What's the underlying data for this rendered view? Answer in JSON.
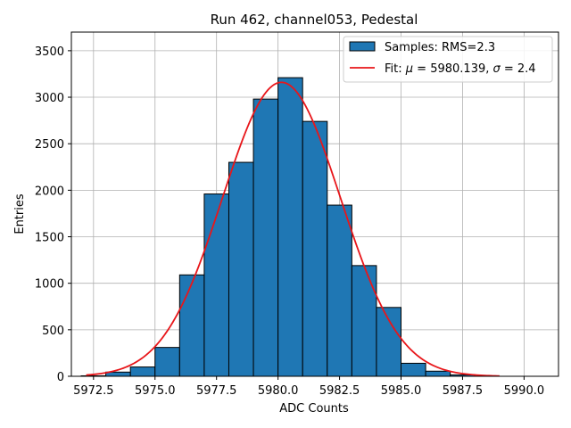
{
  "chart_data": {
    "type": "bar",
    "title": "Run 462, channel053, Pedestal",
    "xlabel": "ADC Counts",
    "ylabel": "Entries",
    "xlim": [
      5971.6,
      5991.4
    ],
    "ylim": [
      0,
      3700
    ],
    "xticks": [
      5972.5,
      5975.0,
      5977.5,
      5980.0,
      5982.5,
      5985.0,
      5987.5,
      5990.0
    ],
    "xtick_labels": [
      "5972.5",
      "5975.0",
      "5977.5",
      "5980.0",
      "5982.5",
      "5985.0",
      "5987.5",
      "5990.0"
    ],
    "yticks": [
      0,
      500,
      1000,
      1500,
      2000,
      2500,
      3000,
      3500
    ],
    "ytick_labels": [
      "0",
      "500",
      "1000",
      "1500",
      "2000",
      "2500",
      "3000",
      "3500"
    ],
    "grid": true,
    "legend_position": "top-right",
    "bar_color": "#1f77b4",
    "fit_color": "#e8161a",
    "histogram": {
      "name": "Samples: RMS=2.3",
      "bins": [
        {
          "x0": 5972.0,
          "x1": 5973.0,
          "value": 5
        },
        {
          "x0": 5973.0,
          "x1": 5974.0,
          "value": 45
        },
        {
          "x0": 5974.0,
          "x1": 5975.0,
          "value": 100
        },
        {
          "x0": 5975.0,
          "x1": 5976.0,
          "value": 310
        },
        {
          "x0": 5976.0,
          "x1": 5977.0,
          "value": 1090
        },
        {
          "x0": 5977.0,
          "x1": 5978.0,
          "value": 1960
        },
        {
          "x0": 5978.0,
          "x1": 5979.0,
          "value": 2300
        },
        {
          "x0": 5979.0,
          "x1": 5980.0,
          "value": 2980
        },
        {
          "x0": 5980.0,
          "x1": 5981.0,
          "value": 3210
        },
        {
          "x0": 5981.0,
          "x1": 5982.0,
          "value": 2740
        },
        {
          "x0": 5982.0,
          "x1": 5983.0,
          "value": 1840
        },
        {
          "x0": 5983.0,
          "x1": 5984.0,
          "value": 1190
        },
        {
          "x0": 5984.0,
          "x1": 5985.0,
          "value": 740
        },
        {
          "x0": 5985.0,
          "x1": 5986.0,
          "value": 140
        },
        {
          "x0": 5986.0,
          "x1": 5987.0,
          "value": 55
        },
        {
          "x0": 5987.0,
          "x1": 5988.0,
          "value": 15
        }
      ]
    },
    "fit": {
      "name_prefix": "Fit: ",
      "mu_symbol": "μ",
      "mu_text": " = 5980.139, ",
      "sigma_symbol": "σ",
      "sigma_text": " = 2.4",
      "mu": 5980.139,
      "sigma": 2.4,
      "amplitude": 3160,
      "x_range": [
        5972.2,
        5989.0
      ]
    }
  }
}
